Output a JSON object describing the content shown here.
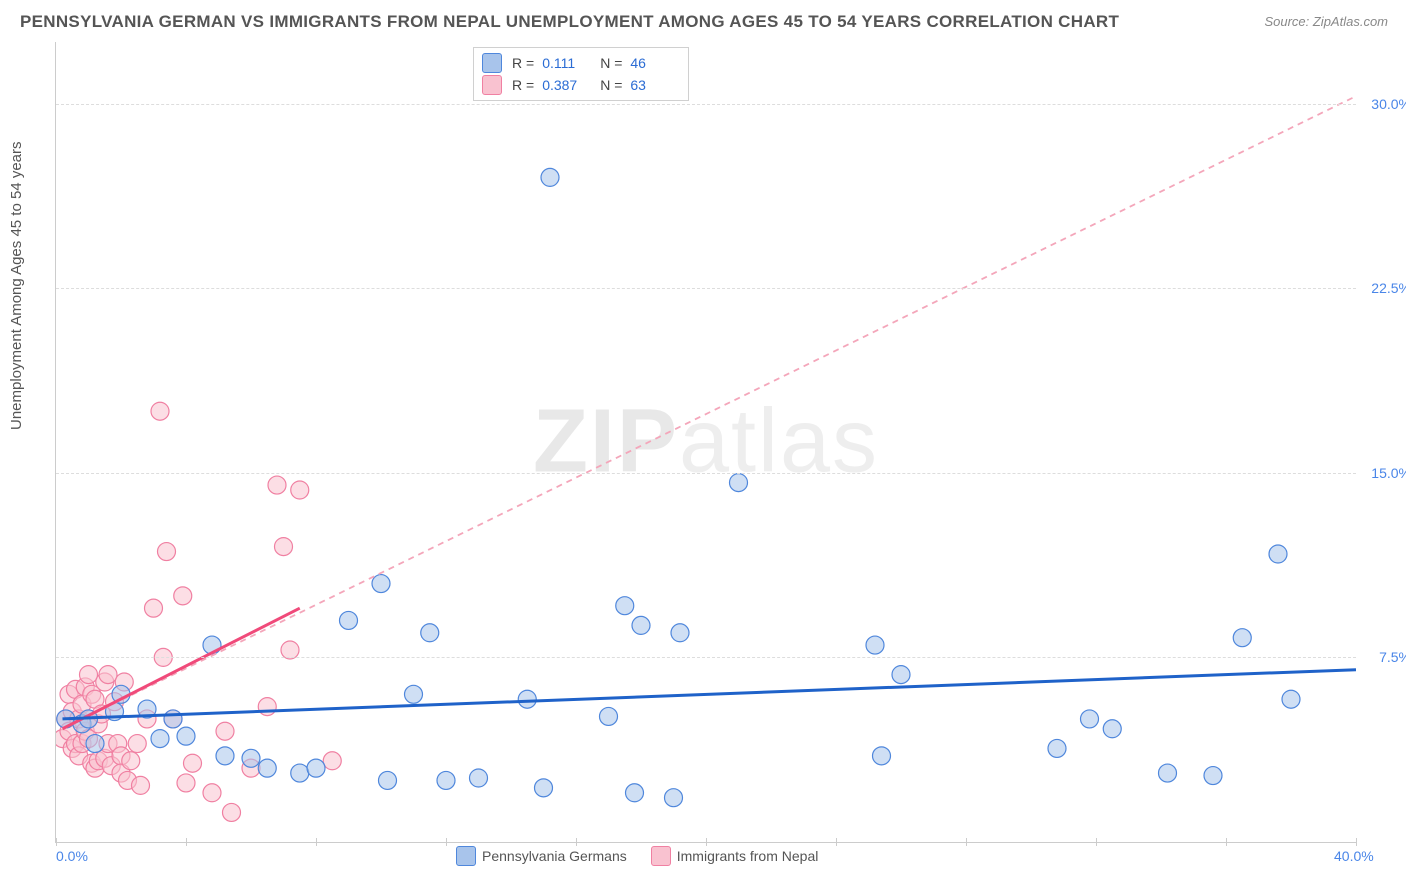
{
  "title": "PENNSYLVANIA GERMAN VS IMMIGRANTS FROM NEPAL UNEMPLOYMENT AMONG AGES 45 TO 54 YEARS CORRELATION CHART",
  "source": "Source: ZipAtlas.com",
  "ylabel": "Unemployment Among Ages 45 to 54 years",
  "watermark_bold": "ZIP",
  "watermark_thin": "atlas",
  "chart": {
    "type": "scatter",
    "xlim": [
      0,
      40
    ],
    "ylim": [
      0,
      32.5
    ],
    "x_ticks": [
      0,
      4,
      8,
      12,
      16,
      20,
      24,
      28,
      32,
      36,
      40
    ],
    "x_tick_labels": {
      "0": "0.0%",
      "40": "40.0%"
    },
    "y_gridlines": [
      7.5,
      15.0,
      22.5,
      30.0
    ],
    "y_gridline_labels": [
      "7.5%",
      "15.0%",
      "22.5%",
      "30.0%"
    ],
    "background_color": "#ffffff",
    "grid_color": "#dddddd",
    "marker_radius": 9,
    "marker_opacity": 0.55,
    "series": [
      {
        "name": "Pennsylvania Germans",
        "color": "#6596dc",
        "fill": "#a8c4eb",
        "stroke": "#4f87dc",
        "R": "0.111",
        "N": "46",
        "trend": {
          "x1": 0.2,
          "y1": 5.0,
          "x2": 40,
          "y2": 7.0,
          "stroke": "#1f62c9",
          "width": 3,
          "dash": "none",
          "short": null
        },
        "points": [
          [
            0.3,
            5.0
          ],
          [
            0.8,
            4.8
          ],
          [
            1.0,
            5.0
          ],
          [
            1.2,
            4.0
          ],
          [
            1.8,
            5.3
          ],
          [
            2.0,
            6.0
          ],
          [
            2.8,
            5.4
          ],
          [
            3.2,
            4.2
          ],
          [
            3.6,
            5.0
          ],
          [
            4.0,
            4.3
          ],
          [
            4.8,
            8.0
          ],
          [
            5.2,
            3.5
          ],
          [
            6.0,
            3.4
          ],
          [
            6.5,
            3.0
          ],
          [
            7.5,
            2.8
          ],
          [
            8.0,
            3.0
          ],
          [
            9.0,
            9.0
          ],
          [
            10.0,
            10.5
          ],
          [
            10.2,
            2.5
          ],
          [
            11.0,
            6.0
          ],
          [
            11.5,
            8.5
          ],
          [
            12.0,
            2.5
          ],
          [
            13.0,
            2.6
          ],
          [
            14.5,
            5.8
          ],
          [
            15.0,
            2.2
          ],
          [
            15.2,
            27.0
          ],
          [
            17.0,
            5.1
          ],
          [
            17.5,
            9.6
          ],
          [
            17.8,
            2.0
          ],
          [
            18.0,
            8.8
          ],
          [
            19.0,
            1.8
          ],
          [
            19.2,
            8.5
          ],
          [
            21.0,
            14.6
          ],
          [
            25.2,
            8.0
          ],
          [
            25.4,
            3.5
          ],
          [
            26.0,
            6.8
          ],
          [
            30.8,
            3.8
          ],
          [
            31.8,
            5.0
          ],
          [
            32.5,
            4.6
          ],
          [
            34.2,
            2.8
          ],
          [
            35.6,
            2.7
          ],
          [
            36.5,
            8.3
          ],
          [
            37.6,
            11.7
          ],
          [
            38.0,
            5.8
          ]
        ]
      },
      {
        "name": "Immigrants from Nepal",
        "color": "#f4a6ba",
        "fill": "#f9c2d0",
        "stroke": "#f080a2",
        "R": "0.387",
        "N": "63",
        "trend": {
          "x1": 0.2,
          "y1": 4.6,
          "x2": 40,
          "y2": 30.3,
          "stroke": "#f4a6ba",
          "width": 1.8,
          "dash": "6,5",
          "short": {
            "x2": 7.5,
            "y2": 9.5,
            "width": 3,
            "dash": "none",
            "stroke": "#f04a7a"
          }
        },
        "points": [
          [
            0.2,
            4.2
          ],
          [
            0.3,
            5.0
          ],
          [
            0.4,
            4.5
          ],
          [
            0.4,
            6.0
          ],
          [
            0.5,
            5.3
          ],
          [
            0.5,
            3.8
          ],
          [
            0.6,
            6.2
          ],
          [
            0.6,
            4.0
          ],
          [
            0.7,
            5.0
          ],
          [
            0.7,
            3.5
          ],
          [
            0.8,
            5.6
          ],
          [
            0.8,
            4.0
          ],
          [
            0.9,
            6.3
          ],
          [
            0.9,
            4.5
          ],
          [
            1.0,
            6.8
          ],
          [
            1.0,
            4.2
          ],
          [
            1.0,
            5.0
          ],
          [
            1.1,
            3.2
          ],
          [
            1.1,
            6.0
          ],
          [
            1.2,
            3.0
          ],
          [
            1.2,
            5.8
          ],
          [
            1.3,
            4.8
          ],
          [
            1.3,
            3.3
          ],
          [
            1.4,
            5.2
          ],
          [
            1.5,
            6.5
          ],
          [
            1.5,
            3.4
          ],
          [
            1.6,
            6.8
          ],
          [
            1.6,
            4.0
          ],
          [
            1.7,
            3.1
          ],
          [
            1.8,
            5.7
          ],
          [
            1.9,
            4.0
          ],
          [
            2.0,
            3.5
          ],
          [
            2.0,
            2.8
          ],
          [
            2.1,
            6.5
          ],
          [
            2.2,
            2.5
          ],
          [
            2.3,
            3.3
          ],
          [
            2.5,
            4.0
          ],
          [
            2.6,
            2.3
          ],
          [
            2.8,
            5.0
          ],
          [
            3.0,
            9.5
          ],
          [
            3.2,
            17.5
          ],
          [
            3.3,
            7.5
          ],
          [
            3.4,
            11.8
          ],
          [
            3.6,
            5.0
          ],
          [
            3.9,
            10.0
          ],
          [
            4.0,
            2.4
          ],
          [
            4.2,
            3.2
          ],
          [
            4.8,
            2.0
          ],
          [
            5.2,
            4.5
          ],
          [
            5.4,
            1.2
          ],
          [
            6.0,
            3.0
          ],
          [
            6.5,
            5.5
          ],
          [
            6.8,
            14.5
          ],
          [
            7.0,
            12.0
          ],
          [
            7.2,
            7.8
          ],
          [
            7.5,
            14.3
          ],
          [
            8.5,
            3.3
          ]
        ]
      }
    ],
    "stats_box": {
      "rows": [
        0,
        1
      ]
    },
    "bottom_legend": [
      0,
      1
    ]
  }
}
